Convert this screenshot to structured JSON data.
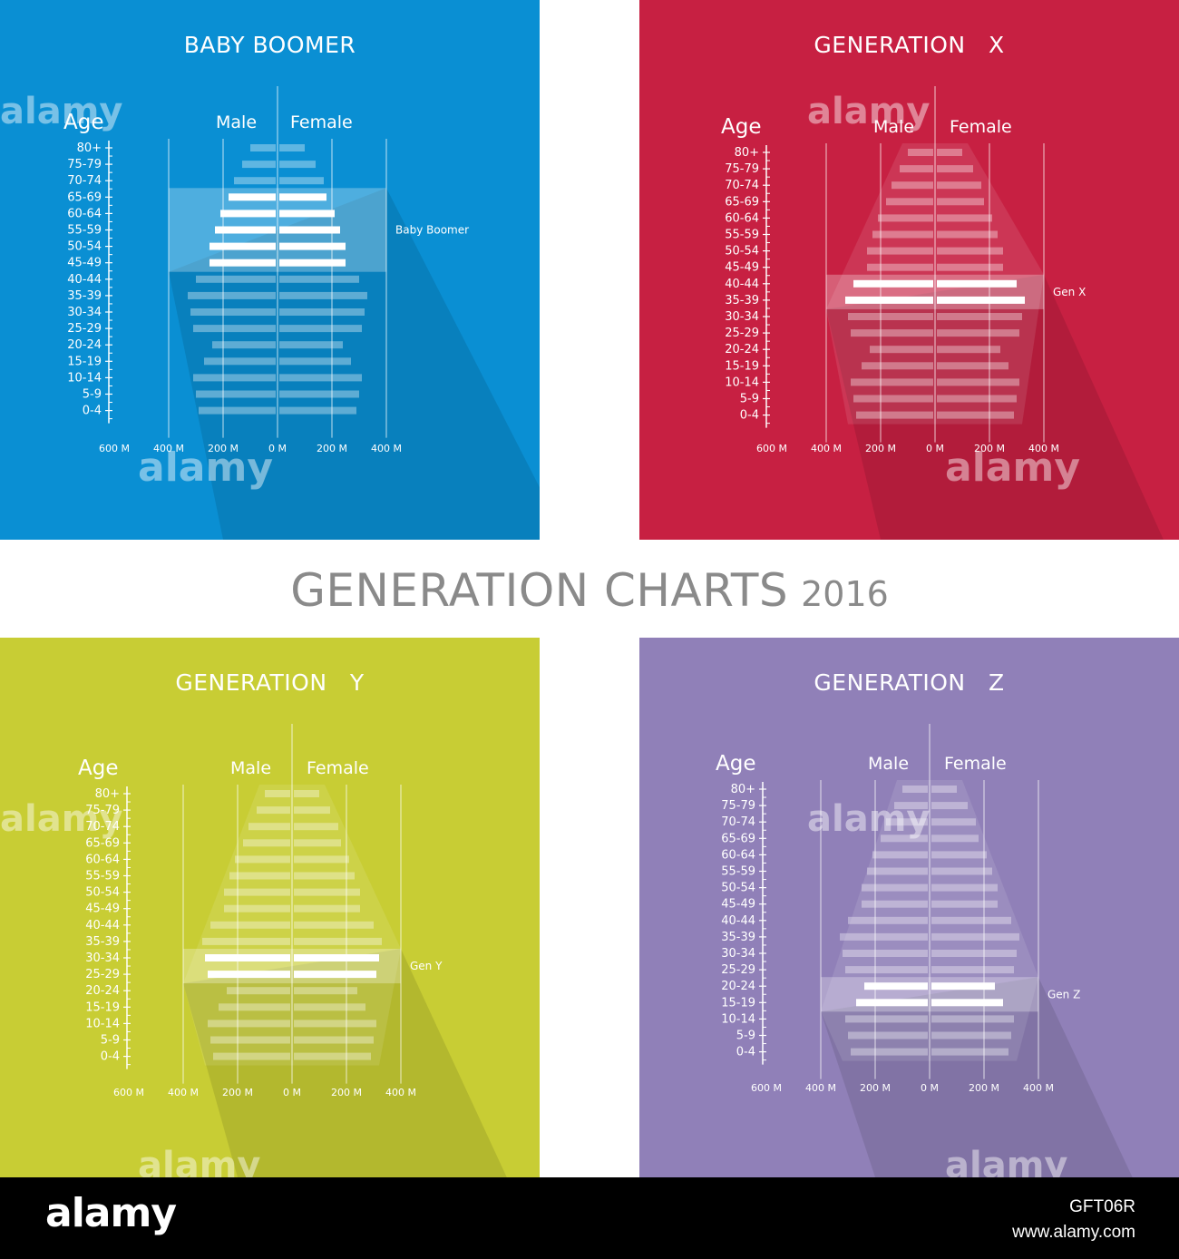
{
  "main_title": "GENERATION CHARTS",
  "main_year": "2016",
  "footer": {
    "logo": "alamy",
    "image_id": "GFT06R",
    "site": "www.alamy.com"
  },
  "watermark": "alamy",
  "chart_data": [
    {
      "type": "bar",
      "title": "BABY BOOMER",
      "background": "#0a8fd3",
      "age_label": "Age",
      "male_label": "Male",
      "female_label": "Female",
      "categories": [
        "80+",
        "75-79",
        "70-74",
        "65-69",
        "60-64",
        "55-59",
        "50-54",
        "45-49",
        "40-44",
        "35-39",
        "30-34",
        "25-29",
        "20-24",
        "15-19",
        "10-14",
        "5-9",
        "0-4"
      ],
      "x_tick_labels": [
        "600 M",
        "400 M",
        "200 M",
        "0 M",
        "200 M",
        "400 M"
      ],
      "xlim": [
        -400,
        400
      ],
      "series": [
        {
          "name": "Male",
          "values": [
            -100,
            -130,
            -160,
            -180,
            -210,
            -230,
            -250,
            -250,
            -300,
            -330,
            -320,
            -310,
            -240,
            -270,
            -310,
            -300,
            -290
          ]
        },
        {
          "name": "Female",
          "values": [
            100,
            140,
            170,
            180,
            210,
            230,
            250,
            250,
            300,
            330,
            320,
            310,
            240,
            270,
            310,
            300,
            290
          ]
        }
      ],
      "highlight": {
        "label": "Baby Boomer",
        "categories": [
          "65-69",
          "60-64",
          "55-59",
          "50-54",
          "45-49"
        ]
      }
    },
    {
      "type": "bar",
      "title": "GENERATION   X",
      "background": "#c72042",
      "age_label": "Age",
      "male_label": "Male",
      "female_label": "Female",
      "categories": [
        "80+",
        "75-79",
        "70-74",
        "65-69",
        "60-64",
        "55-59",
        "50-54",
        "45-49",
        "40-44",
        "35-39",
        "30-34",
        "25-29",
        "20-24",
        "15-19",
        "10-14",
        "5-9",
        "0-4"
      ],
      "x_tick_labels": [
        "600 M",
        "400 M",
        "200 M",
        "0 M",
        "200 M",
        "400 M"
      ],
      "xlim": [
        -400,
        400
      ],
      "series": [
        {
          "name": "Male",
          "values": [
            -100,
            -130,
            -160,
            -180,
            -210,
            -230,
            -250,
            -250,
            -300,
            -330,
            -320,
            -310,
            -240,
            -270,
            -310,
            -300,
            -290
          ]
        },
        {
          "name": "Female",
          "values": [
            100,
            140,
            170,
            180,
            210,
            230,
            250,
            250,
            300,
            330,
            320,
            310,
            240,
            270,
            310,
            300,
            290
          ]
        }
      ],
      "highlight": {
        "label": "Gen X",
        "categories": [
          "40-44",
          "35-39"
        ]
      }
    },
    {
      "type": "bar",
      "title": "GENERATION   Y",
      "background": "#c8cd34",
      "age_label": "Age",
      "male_label": "Male",
      "female_label": "Female",
      "categories": [
        "80+",
        "75-79",
        "70-74",
        "65-69",
        "60-64",
        "55-59",
        "50-54",
        "45-49",
        "40-44",
        "35-39",
        "30-34",
        "25-29",
        "20-24",
        "15-19",
        "10-14",
        "5-9",
        "0-4"
      ],
      "x_tick_labels": [
        "600 M",
        "400 M",
        "200 M",
        "0 M",
        "200 M",
        "400 M"
      ],
      "xlim": [
        -400,
        400
      ],
      "series": [
        {
          "name": "Male",
          "values": [
            -100,
            -130,
            -160,
            -180,
            -210,
            -230,
            -250,
            -250,
            -300,
            -330,
            -320,
            -310,
            -240,
            -270,
            -310,
            -300,
            -290
          ]
        },
        {
          "name": "Female",
          "values": [
            100,
            140,
            170,
            180,
            210,
            230,
            250,
            250,
            300,
            330,
            320,
            310,
            240,
            270,
            310,
            300,
            290
          ]
        }
      ],
      "highlight": {
        "label": "Gen Y",
        "categories": [
          "30-34",
          "25-29"
        ]
      }
    },
    {
      "type": "bar",
      "title": "GENERATION   Z",
      "background": "#9080b8",
      "age_label": "Age",
      "male_label": "Male",
      "female_label": "Female",
      "categories": [
        "80+",
        "75-79",
        "70-74",
        "65-69",
        "60-64",
        "55-59",
        "50-54",
        "45-49",
        "40-44",
        "35-39",
        "30-34",
        "25-29",
        "20-24",
        "15-19",
        "10-14",
        "5-9",
        "0-4"
      ],
      "x_tick_labels": [
        "600 M",
        "400 M",
        "200 M",
        "0 M",
        "200 M",
        "400 M"
      ],
      "xlim": [
        -400,
        400
      ],
      "series": [
        {
          "name": "Male",
          "values": [
            -100,
            -130,
            -160,
            -180,
            -210,
            -230,
            -250,
            -250,
            -300,
            -330,
            -320,
            -310,
            -240,
            -270,
            -310,
            -300,
            -290
          ]
        },
        {
          "name": "Female",
          "values": [
            100,
            140,
            170,
            180,
            210,
            230,
            250,
            250,
            300,
            330,
            320,
            310,
            240,
            270,
            310,
            300,
            290
          ]
        }
      ],
      "highlight": {
        "label": "Gen Z",
        "categories": [
          "20-24",
          "15-19"
        ]
      }
    }
  ]
}
